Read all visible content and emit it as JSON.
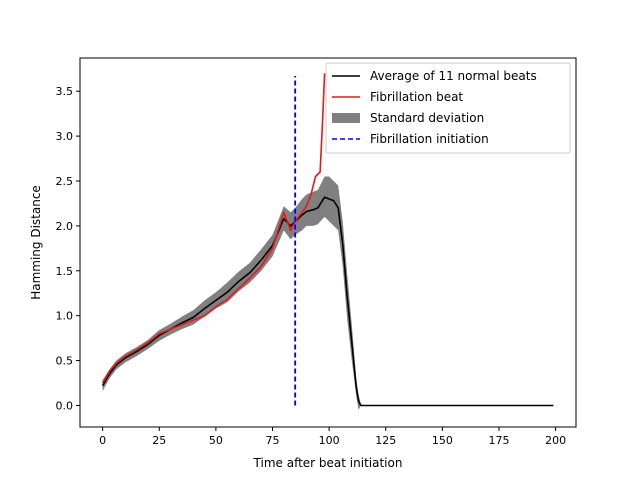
{
  "chart_data": {
    "type": "line",
    "title": "",
    "xlabel": "Time after beat initiation",
    "ylabel": "Hamming Distance",
    "xlim": [
      -10,
      209
    ],
    "ylim": [
      -0.24,
      3.87
    ],
    "xticks": [
      0,
      25,
      50,
      75,
      100,
      125,
      150,
      175,
      200
    ],
    "xtick_labels": [
      "0",
      "25",
      "50",
      "75",
      "100",
      "125",
      "150",
      "175",
      "200"
    ],
    "yticks": [
      0.0,
      0.5,
      1.0,
      1.5,
      2.0,
      2.5,
      3.0,
      3.5
    ],
    "ytick_labels": [
      "0.0",
      "0.5",
      "1.0",
      "1.5",
      "2.0",
      "2.5",
      "3.0",
      "3.5"
    ],
    "grid": false,
    "legend_position": "top-right",
    "series": [
      {
        "name": "Average of 11 normal beats",
        "kind": "line",
        "color": "#000000",
        "x": [
          0,
          3,
          6,
          10,
          15,
          20,
          25,
          30,
          35,
          40,
          45,
          50,
          55,
          60,
          65,
          70,
          75,
          80,
          83,
          85,
          88,
          90,
          93,
          95,
          98,
          100,
          102,
          104,
          106,
          108,
          110,
          112,
          113,
          114,
          115,
          125,
          150,
          175,
          199
        ],
        "y": [
          0.22,
          0.35,
          0.45,
          0.53,
          0.6,
          0.68,
          0.78,
          0.85,
          0.92,
          0.98,
          1.08,
          1.17,
          1.26,
          1.38,
          1.48,
          1.62,
          1.78,
          2.08,
          2.0,
          2.05,
          2.12,
          2.16,
          2.18,
          2.2,
          2.32,
          2.3,
          2.28,
          2.2,
          1.8,
          1.2,
          0.7,
          0.2,
          0.05,
          0.0,
          0.0,
          0.0,
          0.0,
          0.0,
          0.0
        ]
      },
      {
        "name": "Fibrillation beat",
        "kind": "line",
        "color": "#e41a1c",
        "x": [
          0,
          3,
          6,
          10,
          15,
          20,
          25,
          30,
          35,
          40,
          45,
          50,
          55,
          60,
          65,
          70,
          75,
          80,
          83,
          85,
          88,
          90,
          92,
          94,
          96,
          97,
          98
        ],
        "y": [
          0.25,
          0.38,
          0.47,
          0.55,
          0.62,
          0.7,
          0.8,
          0.85,
          0.9,
          0.95,
          1.0,
          1.1,
          1.18,
          1.3,
          1.42,
          1.55,
          1.75,
          2.15,
          1.95,
          2.05,
          2.15,
          2.22,
          2.35,
          2.55,
          2.6,
          3.1,
          3.7
        ]
      },
      {
        "name": "Standard deviation",
        "kind": "band",
        "color": "#808080",
        "x": [
          0,
          3,
          6,
          10,
          15,
          20,
          25,
          30,
          35,
          40,
          45,
          50,
          55,
          60,
          65,
          70,
          75,
          80,
          83,
          85,
          88,
          90,
          93,
          95,
          98,
          100,
          102,
          104,
          106,
          108,
          110,
          112,
          113,
          114,
          115,
          125,
          150,
          175,
          199
        ],
        "lower": [
          0.16,
          0.3,
          0.4,
          0.48,
          0.55,
          0.63,
          0.72,
          0.79,
          0.85,
          0.9,
          0.99,
          1.08,
          1.15,
          1.27,
          1.37,
          1.5,
          1.66,
          1.95,
          1.85,
          1.9,
          1.95,
          2.0,
          2.0,
          2.02,
          2.1,
          2.05,
          2.0,
          1.95,
          1.55,
          0.95,
          0.5,
          0.1,
          -0.05,
          0.0,
          0.0,
          0.0,
          0.0,
          0.0,
          0.0
        ],
        "upper": [
          0.28,
          0.4,
          0.5,
          0.58,
          0.65,
          0.73,
          0.84,
          0.91,
          0.99,
          1.06,
          1.17,
          1.26,
          1.37,
          1.49,
          1.59,
          1.74,
          1.9,
          2.22,
          2.15,
          2.2,
          2.3,
          2.35,
          2.38,
          2.4,
          2.55,
          2.55,
          2.5,
          2.45,
          2.05,
          1.45,
          0.9,
          0.3,
          0.12,
          0.02,
          0.0,
          0.0,
          0.0,
          0.0,
          0.0
        ]
      },
      {
        "name": "Fibrillation initiation",
        "kind": "vline",
        "color": "#0000ff",
        "x": 85,
        "y_range": [
          0.0,
          3.67
        ]
      }
    ]
  }
}
